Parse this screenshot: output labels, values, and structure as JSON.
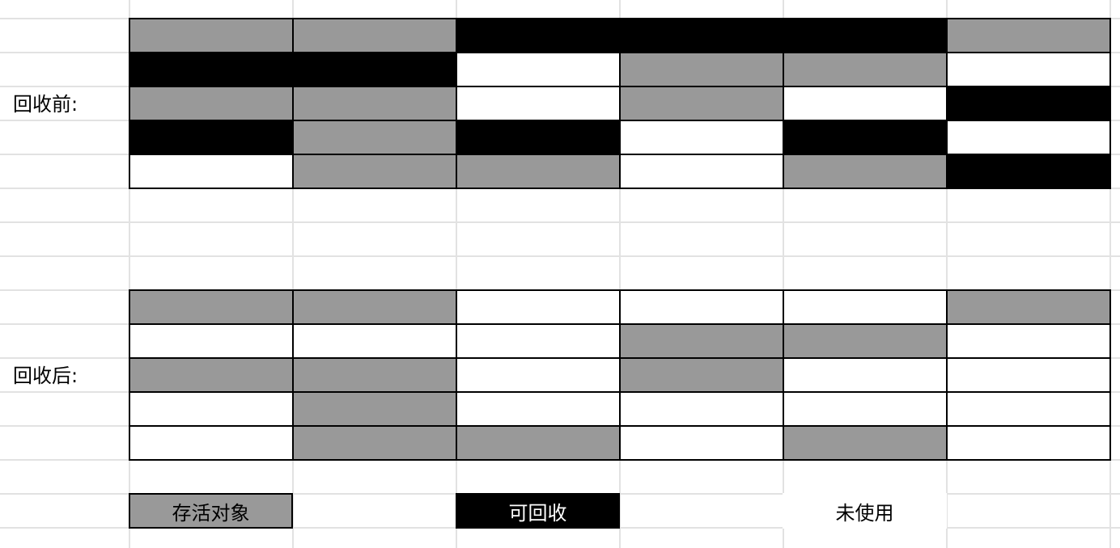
{
  "colors": {
    "live": "#999999",
    "reclaimable": "#000000",
    "unused": "#ffffff",
    "gridline": "#e2e2e2",
    "border": "#000000"
  },
  "before": {
    "label": "回收前:",
    "rows": [
      [
        "live",
        "live",
        "reclaimable",
        "reclaimable",
        "reclaimable",
        "live"
      ],
      [
        "reclaimable",
        "reclaimable",
        "unused",
        "live",
        "live",
        "unused"
      ],
      [
        "live",
        "live",
        "unused",
        "live",
        "unused",
        "reclaimable"
      ],
      [
        "reclaimable",
        "live",
        "reclaimable",
        "unused",
        "reclaimable",
        "unused"
      ],
      [
        "unused",
        "live",
        "live",
        "unused",
        "live",
        "reclaimable"
      ]
    ]
  },
  "after": {
    "label": "回收后:",
    "rows": [
      [
        "live",
        "live",
        "unused",
        "unused",
        "unused",
        "live"
      ],
      [
        "unused",
        "unused",
        "unused",
        "live",
        "live",
        "unused"
      ],
      [
        "live",
        "live",
        "unused",
        "live",
        "unused",
        "unused"
      ],
      [
        "unused",
        "live",
        "unused",
        "unused",
        "unused",
        "unused"
      ],
      [
        "unused",
        "live",
        "live",
        "unused",
        "live",
        "unused"
      ]
    ]
  },
  "legend": {
    "live": "存活对象",
    "reclaimable": "可回收",
    "unused": "未使用"
  }
}
